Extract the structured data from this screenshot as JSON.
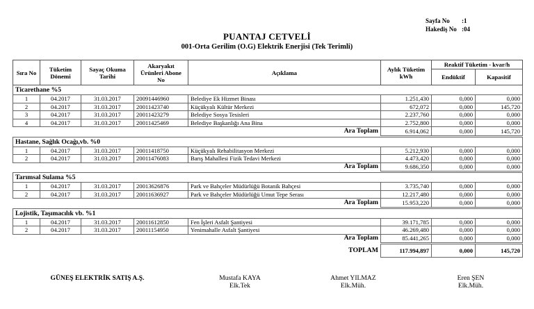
{
  "meta": {
    "page_no_label": "Sayfa No",
    "page_no_value": ":1",
    "hakedis_label": "Hakediş No",
    "hakedis_value": ":04"
  },
  "title": "PUANTAJ CETVELİ",
  "subtitle": "001-Orta Gerilim (O.G) Elektrik Enerjisi (Tek Terimli)",
  "headers": {
    "sira_no": "Sıra No",
    "tuketim_donemi": "Tüketim Dönemi",
    "sayac_okuma": "Sayaç Okuma Tarihi",
    "abone_no": "Akaryakıt Ürünleri Abone No",
    "aciklama": "Açıklama",
    "aylik": "Aylık Tüketim kWh",
    "reaktif": "Reaktif Tüketim - kvar/h",
    "enduktif": "Endüktif",
    "kapasitif": "Kapasitif"
  },
  "groups": [
    {
      "title": "Ticarethane %5",
      "rows": [
        [
          "1",
          "04.2017",
          "31.03.2017",
          "20091446960",
          "Belediye Ek Hizmet Binası",
          "1.251,430",
          "0,000",
          "0,000"
        ],
        [
          "2",
          "04.2017",
          "31.03.2017",
          "20011423740",
          "Küçükyalı Kültür Merkezi",
          "672,072",
          "0,000",
          "145,720"
        ],
        [
          "3",
          "04.2017",
          "31.03.2017",
          "20011423279",
          "Belediye Sosya Tesisleri",
          "2.237,760",
          "0,000",
          "0,000"
        ],
        [
          "4",
          "04.2017",
          "31.03.2017",
          "20011425469",
          "Belediye Başkanlığı Ana Bina",
          "2.752,800",
          "0,000",
          "0,000"
        ]
      ],
      "subtotal": {
        "label": "Ara Toplam",
        "values": [
          "6.914,062",
          "0,000",
          "145,720"
        ]
      }
    },
    {
      "title": "Hastane, Sağlık Ocağı,vb. %0",
      "rows": [
        [
          "1",
          "04.2017",
          "31.03.2017",
          "20011418750",
          "Küçükyalı Rehabilitasyon Merkezi",
          "5.212,930",
          "0,000",
          "0,000"
        ],
        [
          "2",
          "04.2017",
          "31.03.2017",
          "20011476083",
          "Barış Mahallesi Fizik Tedavi Merkezi",
          "4.473,420",
          "0,000",
          "0,000"
        ]
      ],
      "subtotal": {
        "label": "Ara Toplam",
        "values": [
          "9.686,350",
          "0,000",
          "0,000"
        ]
      }
    },
    {
      "title": "Tarımsal Sulama %5",
      "rows": [
        [
          "1",
          "04.2017",
          "31.03.2017",
          "20013626876",
          "Park ve Bahçeler Müdürlüğü Botanik Bahçesi",
          "3.735,740",
          "0,000",
          "0,000"
        ],
        [
          "2",
          "04.2017",
          "31.03.2017",
          "20011636927",
          "Park ve Bahçeler Müdürlüğü Umut Tepe Serası",
          "12.217,480",
          "0,000",
          "0,000"
        ]
      ],
      "subtotal": {
        "label": "Ara Toplam",
        "values": [
          "15.953,220",
          "0,000",
          "0,000"
        ]
      }
    },
    {
      "title": "Lojistik, Taşımacılık vb. %1",
      "rows": [
        [
          "1",
          "04.2017",
          "31.03.2017",
          "20011612850",
          "Fen İşleri Asfalt Şantiyesi",
          "39.171,785",
          "0,000",
          "0,000"
        ],
        [
          "2",
          "04.2017",
          "31.03.2017",
          "20011154950",
          "Yenimahalle Asfalt Şantiyesi",
          "46.269,480",
          "0,000",
          "0,000"
        ]
      ],
      "subtotal": {
        "label": "Ara Toplam",
        "values": [
          "85.441,265",
          "0,000",
          "0,000"
        ]
      }
    }
  ],
  "total": {
    "label": "TOPLAM",
    "values": [
      "117.994,897",
      "0,000",
      "145,720"
    ]
  },
  "signatures": {
    "company": "GÜNEŞ ELEKTRİK SATIŞ A.Ş.",
    "people": [
      {
        "name": "Mustafa KAYA",
        "title": "Elk.Tek"
      },
      {
        "name": "Ahmet YILMAZ",
        "title": "Elk.Müh."
      },
      {
        "name": "Eren ŞEN",
        "title": "Elk.Müh."
      }
    ]
  }
}
